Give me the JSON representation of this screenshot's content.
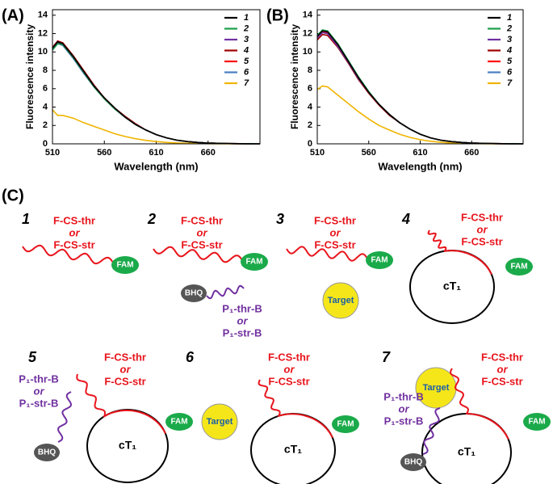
{
  "chart_data": [
    {
      "type": "line",
      "panel_label": "(A)",
      "x_label": "Wavelength (nm)",
      "y_label": "Fluorescence intensity",
      "x": [
        510,
        515,
        520,
        530,
        540,
        550,
        560,
        570,
        580,
        590,
        600,
        610,
        620,
        630,
        640,
        650,
        660,
        680,
        700,
        710
      ],
      "xlim": [
        510,
        710
      ],
      "xticks": [
        510,
        560,
        610,
        660
      ],
      "ylim": [
        0,
        14.6
      ],
      "yticks": [
        0,
        2,
        4,
        6,
        8,
        10,
        12,
        14
      ],
      "series": [
        {
          "name": "1",
          "color": "#000000",
          "values": [
            10.4,
            11.1,
            10.9,
            9.5,
            7.9,
            6.3,
            5.0,
            3.9,
            2.9,
            2.1,
            1.5,
            1.0,
            0.65,
            0.4,
            0.25,
            0.15,
            0.08,
            0.03,
            0.01,
            0
          ]
        },
        {
          "name": "2",
          "color": "#1a9e4a",
          "values": [
            10.2,
            10.9,
            10.8,
            9.4,
            7.8,
            6.2,
            4.9,
            3.8,
            2.9,
            2.1,
            1.5,
            1.0,
            0.65,
            0.4,
            0.25,
            0.15,
            0.08,
            0.03,
            0.01,
            0
          ]
        },
        {
          "name": "3",
          "color": "#7030a0",
          "values": [
            10.3,
            11.0,
            10.8,
            9.4,
            7.8,
            6.2,
            4.9,
            3.8,
            2.9,
            2.1,
            1.5,
            1.0,
            0.65,
            0.4,
            0.25,
            0.15,
            0.08,
            0.03,
            0.01,
            0
          ]
        },
        {
          "name": "4",
          "color": "#a00000",
          "values": [
            10.5,
            11.2,
            11.0,
            9.6,
            8.0,
            6.4,
            5.0,
            3.9,
            3.0,
            2.2,
            1.5,
            1.0,
            0.65,
            0.4,
            0.25,
            0.15,
            0.08,
            0.03,
            0.01,
            0
          ]
        },
        {
          "name": "5",
          "color": "#ff0000",
          "values": [
            10.4,
            11.1,
            10.9,
            9.5,
            7.9,
            6.3,
            5.0,
            3.9,
            2.9,
            2.1,
            1.5,
            1.0,
            0.65,
            0.4,
            0.25,
            0.15,
            0.08,
            0.03,
            0.01,
            0
          ]
        },
        {
          "name": "6",
          "color": "#4a7ec2",
          "values": [
            10.2,
            10.9,
            10.7,
            9.3,
            7.7,
            6.2,
            4.9,
            3.8,
            2.9,
            2.1,
            1.5,
            1.0,
            0.65,
            0.4,
            0.25,
            0.15,
            0.08,
            0.03,
            0.01,
            0
          ]
        },
        {
          "name": "7",
          "color": "#f0b400",
          "values": [
            3.7,
            3.1,
            3.1,
            2.8,
            2.3,
            1.9,
            1.5,
            1.1,
            0.8,
            0.55,
            0.38,
            0.25,
            0.15,
            0.1,
            0.06,
            0.04,
            0.02,
            0.01,
            0,
            0
          ]
        }
      ]
    },
    {
      "type": "line",
      "panel_label": "(B)",
      "x_label": "Wavelength (nm)",
      "y_label": "Fluorescence intensity",
      "x": [
        510,
        515,
        520,
        530,
        540,
        550,
        560,
        570,
        580,
        590,
        600,
        610,
        620,
        630,
        640,
        650,
        660,
        680,
        700,
        710
      ],
      "xlim": [
        510,
        710
      ],
      "xticks": [
        510,
        560,
        610,
        660
      ],
      "ylim": [
        0,
        14.6
      ],
      "yticks": [
        0,
        2,
        4,
        6,
        8,
        10,
        12,
        14
      ],
      "series": [
        {
          "name": "1",
          "color": "#000000",
          "values": [
            11.7,
            12.3,
            12.2,
            10.8,
            9.0,
            7.2,
            5.6,
            4.3,
            3.2,
            2.3,
            1.6,
            1.05,
            0.65,
            0.4,
            0.25,
            0.15,
            0.08,
            0.03,
            0.01,
            0
          ]
        },
        {
          "name": "2",
          "color": "#1a9e4a",
          "values": [
            11.8,
            12.4,
            12.3,
            10.9,
            9.1,
            7.3,
            5.7,
            4.3,
            3.2,
            2.3,
            1.6,
            1.05,
            0.65,
            0.4,
            0.25,
            0.15,
            0.08,
            0.03,
            0.01,
            0
          ]
        },
        {
          "name": "3",
          "color": "#7030a0",
          "values": [
            11.5,
            12.1,
            12.0,
            10.6,
            8.9,
            7.1,
            5.6,
            4.3,
            3.2,
            2.3,
            1.6,
            1.05,
            0.65,
            0.4,
            0.25,
            0.15,
            0.08,
            0.03,
            0.01,
            0
          ]
        },
        {
          "name": "4",
          "color": "#a00000",
          "values": [
            11.3,
            11.9,
            11.8,
            10.5,
            8.8,
            7.0,
            5.5,
            4.2,
            3.1,
            2.3,
            1.6,
            1.05,
            0.65,
            0.4,
            0.25,
            0.15,
            0.08,
            0.03,
            0.01,
            0
          ]
        },
        {
          "name": "5",
          "color": "#ff0000",
          "values": [
            11.6,
            12.2,
            12.1,
            10.7,
            8.9,
            7.1,
            5.6,
            4.3,
            3.2,
            2.3,
            1.6,
            1.05,
            0.65,
            0.4,
            0.25,
            0.15,
            0.08,
            0.03,
            0.01,
            0
          ]
        },
        {
          "name": "6",
          "color": "#4a7ec2",
          "values": [
            11.6,
            12.2,
            12.1,
            10.7,
            8.9,
            7.1,
            5.6,
            4.3,
            3.2,
            2.3,
            1.6,
            1.05,
            0.65,
            0.4,
            0.25,
            0.15,
            0.08,
            0.03,
            0.01,
            0
          ]
        },
        {
          "name": "7",
          "color": "#f0b400",
          "values": [
            5.9,
            6.3,
            6.2,
            5.3,
            4.4,
            3.5,
            2.7,
            2.0,
            1.5,
            1.05,
            0.7,
            0.45,
            0.28,
            0.17,
            0.1,
            0.06,
            0.03,
            0.01,
            0,
            0
          ]
        }
      ]
    }
  ],
  "diagram": {
    "panel_label": "(C)",
    "panels": [
      {
        "number": "1",
        "probe": [
          "F-CS-thr",
          "or",
          "F-CS-str"
        ],
        "fam": "FAM"
      },
      {
        "number": "2",
        "probe": [
          "F-CS-thr",
          "or",
          "F-CS-str"
        ],
        "fam": "FAM",
        "quencher": "BHQ",
        "blocker": [
          "P₁-thr-B",
          "or",
          "P₁-str-B"
        ]
      },
      {
        "number": "3",
        "probe": [
          "F-CS-thr",
          "or",
          "F-CS-str"
        ],
        "fam": "FAM",
        "target": "Target"
      },
      {
        "number": "4",
        "probe": [
          "F-CS-thr",
          "or",
          "F-CS-str"
        ],
        "fam": "FAM",
        "template": "cT₁"
      },
      {
        "number": "5",
        "probe": [
          "F-CS-thr",
          "or",
          "F-CS-str"
        ],
        "fam": "FAM",
        "template": "cT₁",
        "quencher": "BHQ",
        "blocker": [
          "P₁-thr-B",
          "or",
          "P₁-str-B"
        ]
      },
      {
        "number": "6",
        "probe": [
          "F-CS-thr",
          "or",
          "F-CS-str"
        ],
        "fam": "FAM",
        "template": "cT₁",
        "target": "Target"
      },
      {
        "number": "7",
        "probe": [
          "F-CS-thr",
          "or",
          "F-CS-str"
        ],
        "fam": "FAM",
        "template": "cT₁",
        "target": "Target",
        "quencher": "BHQ",
        "blocker": [
          "P₁-thr-B",
          "or",
          "P₁-str-B"
        ]
      }
    ]
  }
}
